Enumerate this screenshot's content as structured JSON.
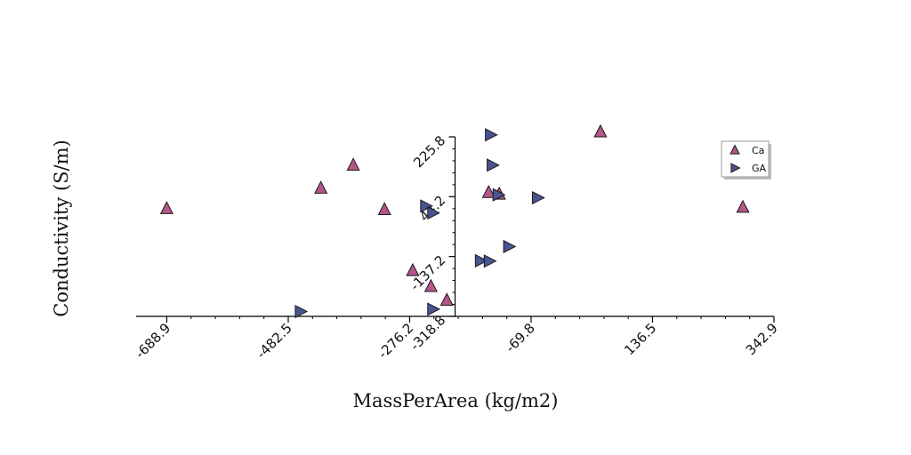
{
  "chart_data": {
    "type": "scatter",
    "xlabel": "MassPerArea (kg/m2)",
    "ylabel": "Conductivity (S/m)",
    "xlim": [
      -741.0,
      342.9
    ],
    "ylim": [
      -318.8,
      225.8
    ],
    "x_ticks": [
      -688.9,
      -482.5,
      -276.2,
      -69.8,
      136.5,
      342.9
    ],
    "x_tick_labels": [
      "-688.9",
      "-482.5",
      "-276.2",
      "-69.8",
      "136.5",
      "342.9"
    ],
    "y_ticks": [
      -318.8,
      -137.2,
      44.2,
      225.8
    ],
    "y_tick_labels": [
      "-318.8",
      "-137.2",
      "44.2",
      "225.8"
    ],
    "y_axis_at_x": -199.0,
    "grid": false,
    "legend_position": "top-right",
    "series": [
      {
        "name": "Ca",
        "marker": "triangle-up",
        "color": "#b5568a",
        "points": [
          [
            -689,
            8
          ],
          [
            -427,
            70
          ],
          [
            -372,
            140
          ],
          [
            -319,
            5
          ],
          [
            -271,
            -180
          ],
          [
            -240,
            -228
          ],
          [
            -213,
            -270
          ],
          [
            -142,
            57
          ],
          [
            -124,
            52
          ],
          [
            48,
            241
          ],
          [
            290,
            12
          ]
        ]
      },
      {
        "name": "GA",
        "marker": "triangle-right",
        "color": "#4a5491",
        "points": [
          [
            -462,
            -304
          ],
          [
            -249,
            16
          ],
          [
            -237,
            -5
          ],
          [
            -237,
            -297
          ],
          [
            -156,
            -150
          ],
          [
            -141,
            -151
          ],
          [
            -139,
            232
          ],
          [
            -136,
            140
          ],
          [
            -126,
            50
          ],
          [
            -108,
            -107
          ],
          [
            -59,
            41
          ]
        ]
      }
    ]
  }
}
